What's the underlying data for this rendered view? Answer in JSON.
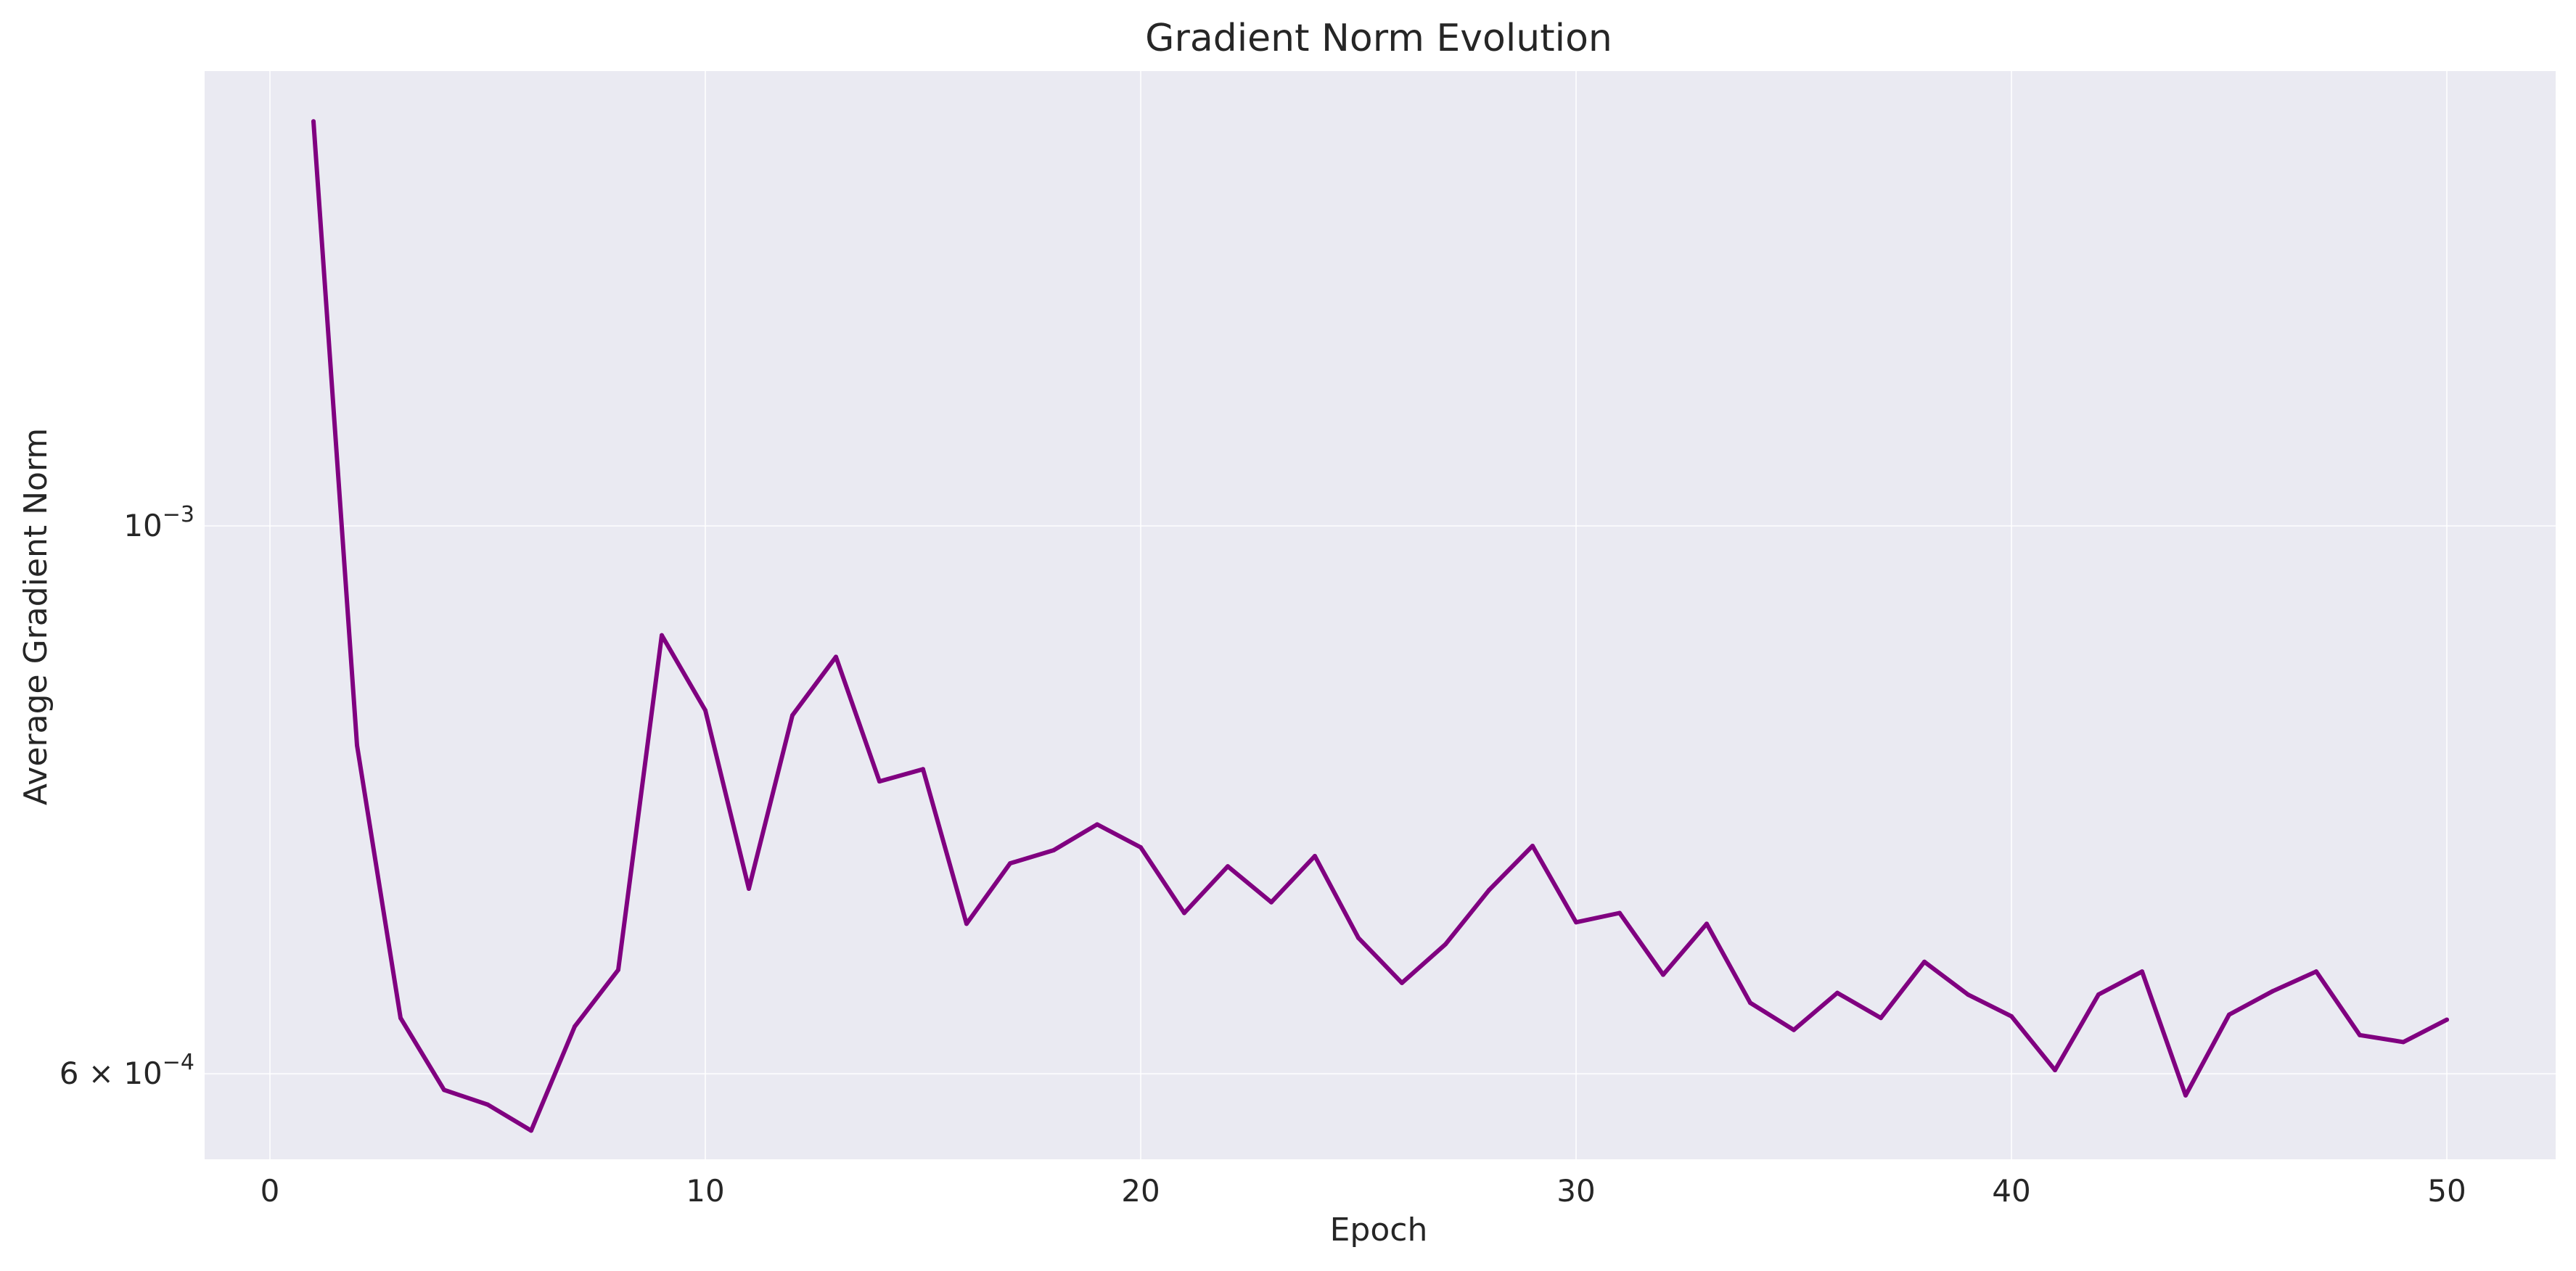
{
  "chart_data": {
    "type": "line",
    "title": "Gradient Norm Evolution",
    "xlabel": "Epoch",
    "ylabel": "Average Gradient Norm",
    "yscale": "log",
    "xlim": [
      -1.5,
      52.5
    ],
    "ylim": [
      0.000554,
      0.001528
    ],
    "grid": true,
    "x_ticks": [
      {
        "value": 0,
        "label": "0"
      },
      {
        "value": 10,
        "label": "10"
      },
      {
        "value": 20,
        "label": "20"
      },
      {
        "value": 30,
        "label": "30"
      },
      {
        "value": 40,
        "label": "40"
      },
      {
        "value": 50,
        "label": "50"
      }
    ],
    "y_ticks": [
      {
        "value": 0.001,
        "base": "10",
        "exponent": "−3"
      },
      {
        "value": 0.0006,
        "base": "6 × 10",
        "exponent": "−4"
      }
    ],
    "series": [
      {
        "color": "#800080",
        "x": [
          1,
          2,
          3,
          4,
          5,
          6,
          7,
          8,
          9,
          10,
          11,
          12,
          13,
          14,
          15,
          16,
          17,
          18,
          19,
          20,
          21,
          22,
          23,
          24,
          25,
          26,
          27,
          28,
          29,
          30,
          31,
          32,
          33,
          34,
          35,
          36,
          37,
          38,
          39,
          40,
          41,
          42,
          43,
          44,
          45,
          46,
          47,
          48,
          49,
          50
        ],
        "values": [
          0.001458,
          0.000815,
          0.000632,
          0.000591,
          0.000583,
          0.000569,
          0.000627,
          0.000661,
          0.000903,
          0.000842,
          0.000713,
          0.000838,
          0.000885,
          0.000788,
          0.000797,
          0.00069,
          0.00073,
          0.000739,
          0.000757,
          0.000741,
          0.000697,
          0.000728,
          0.000704,
          0.000735,
          0.000681,
          0.000653,
          0.000677,
          0.000712,
          0.000742,
          0.000691,
          0.000697,
          0.000658,
          0.00069,
          0.000641,
          0.000625,
          0.000647,
          0.000632,
          0.000666,
          0.000646,
          0.000633,
          0.000602,
          0.000646,
          0.00066,
          0.000588,
          0.000634,
          0.000648,
          0.00066,
          0.000622,
          0.000618,
          0.000631
        ]
      }
    ]
  }
}
